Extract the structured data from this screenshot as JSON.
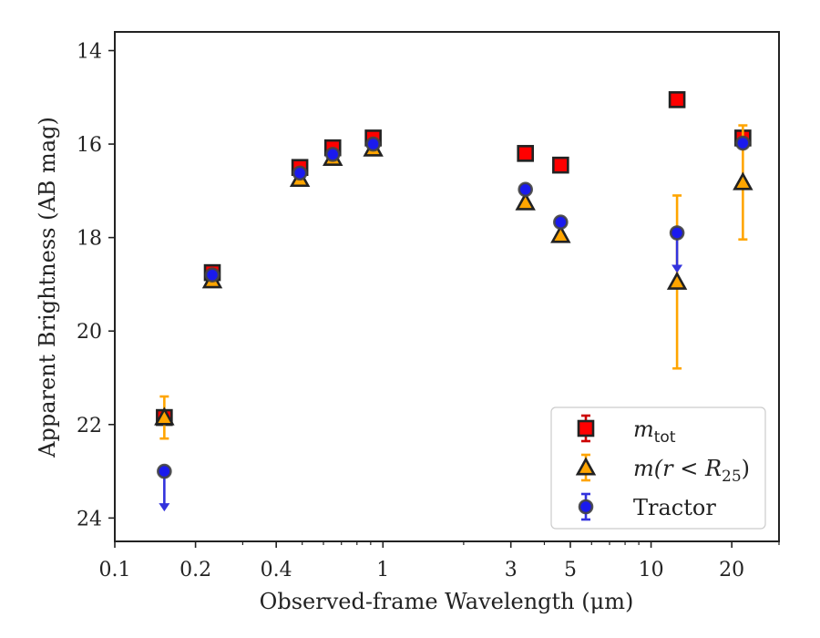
{
  "chart_data": {
    "type": "scatter",
    "xlabel": "Observed-frame Wavelength (μm)",
    "ylabel": "Apparent Brightness (AB mag)",
    "x_scale": "log",
    "y_inverted": true,
    "xlim": [
      0.1,
      30
    ],
    "ylim": [
      24.5,
      13.6
    ],
    "x_ticks": [
      {
        "value": 0.1,
        "label": "0.1"
      },
      {
        "value": 0.2,
        "label": "0.2"
      },
      {
        "value": 0.4,
        "label": "0.4"
      },
      {
        "value": 1,
        "label": "1"
      },
      {
        "value": 3,
        "label": "3"
      },
      {
        "value": 5,
        "label": "5"
      },
      {
        "value": 10,
        "label": "10"
      },
      {
        "value": 20,
        "label": "20"
      }
    ],
    "y_ticks": [
      {
        "value": 14,
        "label": "14"
      },
      {
        "value": 16,
        "label": "16"
      },
      {
        "value": 18,
        "label": "18"
      },
      {
        "value": 20,
        "label": "20"
      },
      {
        "value": 22,
        "label": "22"
      },
      {
        "value": 24,
        "label": "24"
      }
    ],
    "legend_position": "bottom-right",
    "series": [
      {
        "key": "m_tot",
        "label_base": "m",
        "label_sub": "tot",
        "marker": "square",
        "color": "#ff0000",
        "edge_color": "#222222",
        "error_color": "#cc0000",
        "points": [
          {
            "x": 0.153,
            "y": 21.85
          },
          {
            "x": 0.231,
            "y": 18.75
          },
          {
            "x": 0.49,
            "y": 16.5
          },
          {
            "x": 0.65,
            "y": 16.08
          },
          {
            "x": 0.92,
            "y": 15.87
          },
          {
            "x": 3.4,
            "y": 16.2
          },
          {
            "x": 4.6,
            "y": 16.45
          },
          {
            "x": 12.5,
            "y": 15.05
          },
          {
            "x": 22.0,
            "y": 15.87
          }
        ]
      },
      {
        "key": "m_r25",
        "label_main": "m(r < R",
        "label_sub": "25",
        "label_close": ")",
        "marker": "triangle",
        "color": "#ffa500",
        "edge_color": "#222222",
        "error_color": "#ffa500",
        "points": [
          {
            "x": 0.153,
            "y": 21.85,
            "err": 0.45
          },
          {
            "x": 0.231,
            "y": 18.92
          },
          {
            "x": 0.49,
            "y": 16.75
          },
          {
            "x": 0.65,
            "y": 16.3
          },
          {
            "x": 0.92,
            "y": 16.1
          },
          {
            "x": 3.4,
            "y": 17.25
          },
          {
            "x": 4.6,
            "y": 17.95
          },
          {
            "x": 12.5,
            "y": 18.95,
            "err": 1.85
          },
          {
            "x": 22.0,
            "y": 16.82,
            "err": 1.22
          }
        ]
      },
      {
        "key": "tractor",
        "label": "Tractor",
        "marker": "circle",
        "color": "#1a1aee",
        "edge_color": "#444444",
        "error_color": "#3333dd",
        "points": [
          {
            "x": 0.153,
            "y": 23.0,
            "upper_limit": true
          },
          {
            "x": 0.231,
            "y": 18.8
          },
          {
            "x": 0.49,
            "y": 16.62
          },
          {
            "x": 0.65,
            "y": 16.22
          },
          {
            "x": 0.92,
            "y": 16.0
          },
          {
            "x": 3.4,
            "y": 16.97
          },
          {
            "x": 4.6,
            "y": 17.67
          },
          {
            "x": 12.5,
            "y": 17.9,
            "upper_limit": true
          },
          {
            "x": 22.0,
            "y": 15.98
          }
        ]
      }
    ]
  }
}
